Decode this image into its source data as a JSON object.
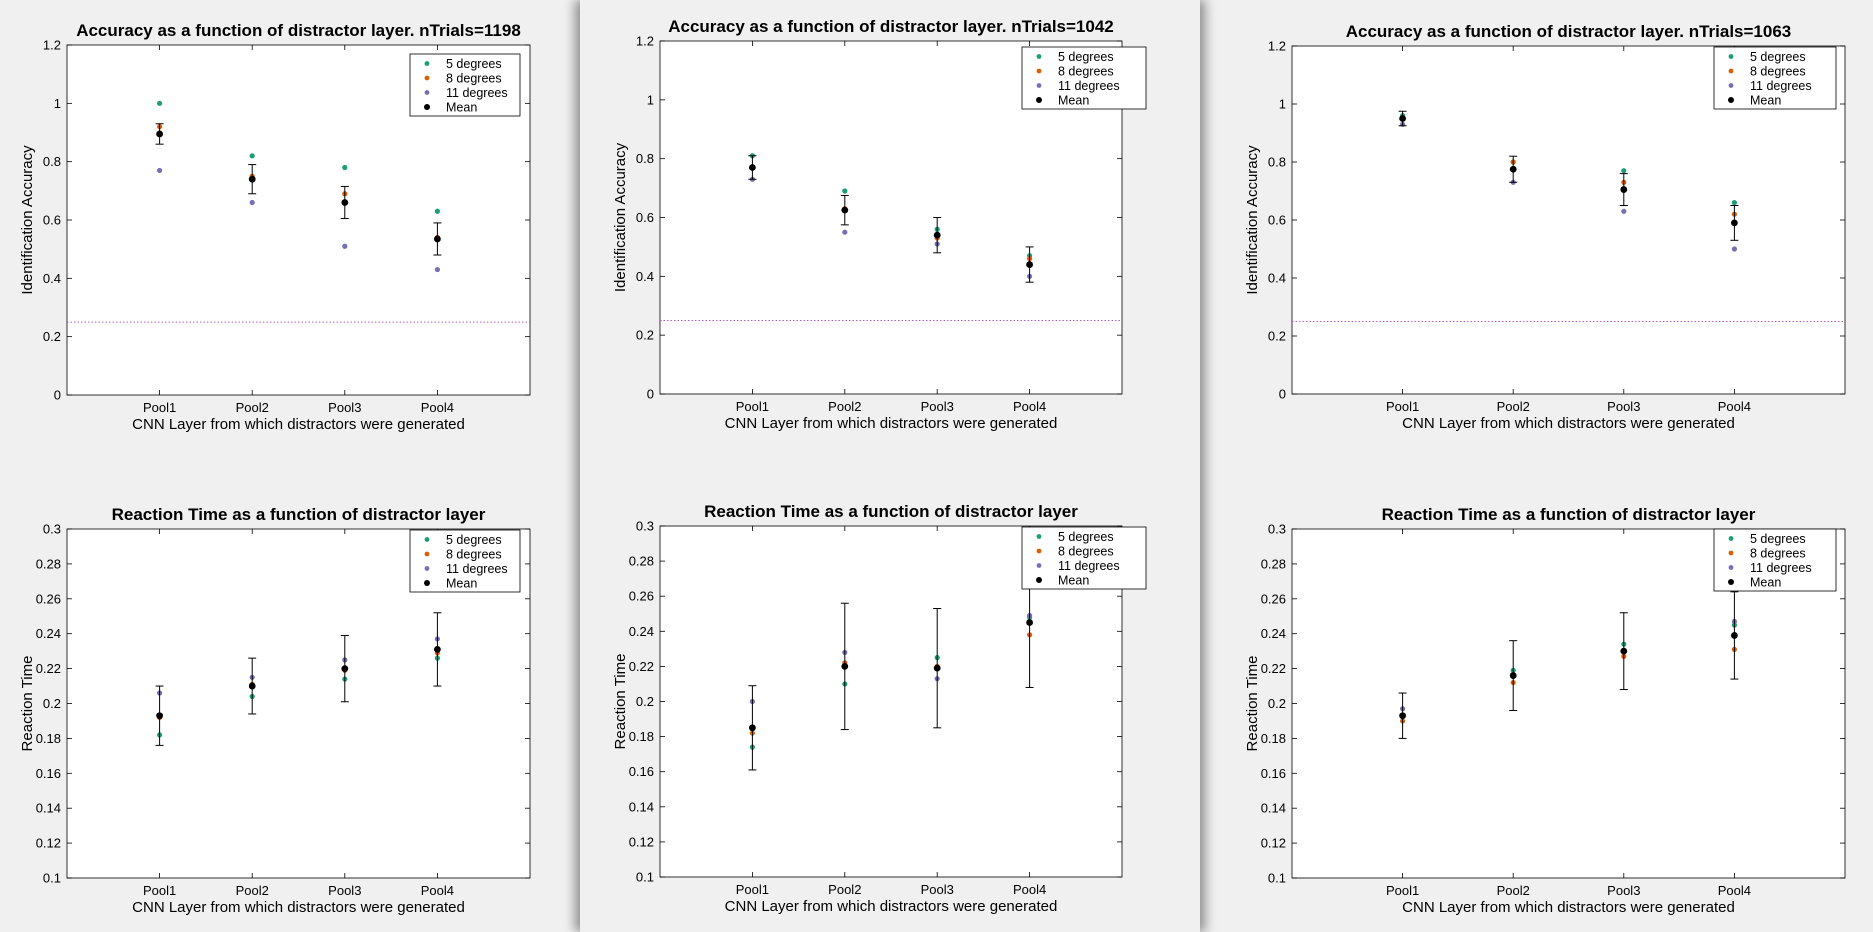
{
  "colors": {
    "series": [
      "#1b9e77",
      "#d95f02",
      "#7570b3",
      "#000000"
    ],
    "chance_line": "#b05cc0",
    "background": "#f0f0f0",
    "plot_area": "#ffffff"
  },
  "chart_data": [
    {
      "type": "scatter",
      "title": "Accuracy as a function of distractor layer. nTrials=1198",
      "xlabel": "CNN Layer from which distractors were generated",
      "ylabel": "Identification Accuracy",
      "categories": [
        "Pool1",
        "Pool2",
        "Pool3",
        "Pool4"
      ],
      "ylim": [
        0,
        1.2
      ],
      "yticks": [
        0,
        0.2,
        0.4,
        0.6,
        0.8,
        1,
        1.2
      ],
      "ytick_labels": [
        "0",
        "0.2",
        "0.4",
        "0.6",
        "0.8",
        "1",
        "1.2"
      ],
      "reference_line": 0.25,
      "legend_position": "top-right",
      "series": [
        {
          "name": "5 degrees",
          "values": [
            1.0,
            0.82,
            0.78,
            0.63
          ]
        },
        {
          "name": "8 degrees",
          "values": [
            0.92,
            0.75,
            0.69,
            0.54
          ]
        },
        {
          "name": "11 degrees",
          "values": [
            0.77,
            0.66,
            0.51,
            0.43
          ]
        },
        {
          "name": "Mean",
          "values": [
            0.895,
            0.74,
            0.66,
            0.535
          ],
          "errors": [
            0.035,
            0.05,
            0.055,
            0.055
          ]
        }
      ]
    },
    {
      "type": "scatter",
      "title": "Accuracy as a function of distractor layer. nTrials=1042",
      "xlabel": "CNN Layer from which distractors were generated",
      "ylabel": "Identification Accuracy",
      "categories": [
        "Pool1",
        "Pool2",
        "Pool3",
        "Pool4"
      ],
      "ylim": [
        0,
        1.2
      ],
      "yticks": [
        0,
        0.2,
        0.4,
        0.6,
        0.8,
        1,
        1.2
      ],
      "ytick_labels": [
        "0",
        "0.2",
        "0.4",
        "0.6",
        "0.8",
        "1",
        "1.2"
      ],
      "reference_line": 0.25,
      "legend_position": "top-right",
      "series": [
        {
          "name": "5 degrees",
          "values": [
            0.81,
            0.69,
            0.56,
            0.47
          ]
        },
        {
          "name": "8 degrees",
          "values": [
            0.77,
            0.63,
            0.53,
            0.46
          ]
        },
        {
          "name": "11 degrees",
          "values": [
            0.73,
            0.55,
            0.51,
            0.4
          ]
        },
        {
          "name": "Mean",
          "values": [
            0.77,
            0.625,
            0.54,
            0.44
          ],
          "errors": [
            0.04,
            0.05,
            0.06,
            0.06
          ]
        }
      ]
    },
    {
      "type": "scatter",
      "title": "Accuracy as a function of distractor layer. nTrials=1063",
      "xlabel": "CNN Layer from which distractors were generated",
      "ylabel": "Identification Accuracy",
      "categories": [
        "Pool1",
        "Pool2",
        "Pool3",
        "Pool4"
      ],
      "ylim": [
        0,
        1.2
      ],
      "yticks": [
        0,
        0.2,
        0.4,
        0.6,
        0.8,
        1,
        1.2
      ],
      "ytick_labels": [
        "0",
        "0.2",
        "0.4",
        "0.6",
        "0.8",
        "1",
        "1.2"
      ],
      "reference_line": 0.25,
      "legend_position": "top-right",
      "series": [
        {
          "name": "5 degrees",
          "values": [
            0.96,
            0.8,
            0.77,
            0.66
          ]
        },
        {
          "name": "8 degrees",
          "values": [
            0.95,
            0.8,
            0.73,
            0.62
          ]
        },
        {
          "name": "11 degrees",
          "values": [
            0.93,
            0.73,
            0.63,
            0.5
          ]
        },
        {
          "name": "Mean",
          "values": [
            0.95,
            0.775,
            0.705,
            0.59
          ],
          "errors": [
            0.025,
            0.045,
            0.055,
            0.06
          ]
        }
      ]
    },
    {
      "type": "scatter",
      "title": "Reaction Time as a function of distractor layer",
      "xlabel": "CNN Layer from which distractors were generated",
      "ylabel": "Reaction Time",
      "categories": [
        "Pool1",
        "Pool2",
        "Pool3",
        "Pool4"
      ],
      "ylim": [
        0.1,
        0.3
      ],
      "yticks": [
        0.1,
        0.12,
        0.14,
        0.16,
        0.18,
        0.2,
        0.22,
        0.24,
        0.26,
        0.28,
        0.3
      ],
      "ytick_labels": [
        "0.1",
        "0.12",
        "0.14",
        "0.16",
        "0.18",
        "0.2",
        "0.22",
        "0.24",
        "0.26",
        "0.28",
        "0.3"
      ],
      "legend_position": "top-right",
      "series": [
        {
          "name": "5 degrees",
          "values": [
            0.182,
            0.204,
            0.214,
            0.226
          ]
        },
        {
          "name": "8 degrees",
          "values": [
            0.192,
            0.211,
            0.219,
            0.229
          ]
        },
        {
          "name": "11 degrees",
          "values": [
            0.206,
            0.215,
            0.225,
            0.237
          ]
        },
        {
          "name": "Mean",
          "values": [
            0.193,
            0.21,
            0.22,
            0.231
          ],
          "errors": [
            0.017,
            0.016,
            0.019,
            0.021
          ]
        }
      ]
    },
    {
      "type": "scatter",
      "title": "Reaction Time as a function of distractor layer",
      "xlabel": "CNN Layer from which distractors were generated",
      "ylabel": "Reaction Time",
      "categories": [
        "Pool1",
        "Pool2",
        "Pool3",
        "Pool4"
      ],
      "ylim": [
        0.1,
        0.3
      ],
      "yticks": [
        0.1,
        0.12,
        0.14,
        0.16,
        0.18,
        0.2,
        0.22,
        0.24,
        0.26,
        0.28,
        0.3
      ],
      "ytick_labels": [
        "0.1",
        "0.12",
        "0.14",
        "0.16",
        "0.18",
        "0.2",
        "0.22",
        "0.24",
        "0.26",
        "0.28",
        "0.3"
      ],
      "legend_position": "top-right",
      "series": [
        {
          "name": "5 degrees",
          "values": [
            0.174,
            0.21,
            0.225,
            0.248
          ]
        },
        {
          "name": "8 degrees",
          "values": [
            0.182,
            0.222,
            0.22,
            0.238
          ]
        },
        {
          "name": "11 degrees",
          "values": [
            0.2,
            0.228,
            0.213,
            0.249
          ]
        },
        {
          "name": "Mean",
          "values": [
            0.185,
            0.22,
            0.219,
            0.245
          ],
          "errors": [
            0.024,
            0.036,
            0.034,
            0.037
          ]
        }
      ]
    },
    {
      "type": "scatter",
      "title": "Reaction Time as a function of distractor layer",
      "xlabel": "CNN Layer from which distractors were generated",
      "ylabel": "Reaction Time",
      "categories": [
        "Pool1",
        "Pool2",
        "Pool3",
        "Pool4"
      ],
      "ylim": [
        0.1,
        0.3
      ],
      "yticks": [
        0.1,
        0.12,
        0.14,
        0.16,
        0.18,
        0.2,
        0.22,
        0.24,
        0.26,
        0.28,
        0.3
      ],
      "ytick_labels": [
        "0.1",
        "0.12",
        "0.14",
        "0.16",
        "0.18",
        "0.2",
        "0.22",
        "0.24",
        "0.26",
        "0.28",
        "0.3"
      ],
      "legend_position": "top-right",
      "series": [
        {
          "name": "5 degrees",
          "values": [
            0.193,
            0.219,
            0.234,
            0.245
          ]
        },
        {
          "name": "8 degrees",
          "values": [
            0.19,
            0.212,
            0.227,
            0.231
          ]
        },
        {
          "name": "11 degrees",
          "values": [
            0.197,
            0.216,
            0.23,
            0.247
          ]
        },
        {
          "name": "Mean",
          "values": [
            0.193,
            0.216,
            0.23,
            0.239
          ],
          "errors": [
            0.013,
            0.02,
            0.022,
            0.025
          ]
        }
      ]
    }
  ]
}
